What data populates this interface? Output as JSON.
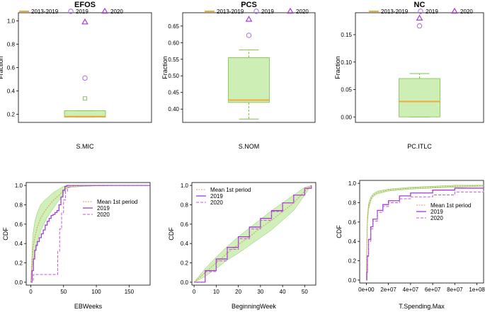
{
  "colors": {
    "orange": "#f2a93b",
    "green": "#7cc24a",
    "green_fill": "#cdeeb4",
    "purple": "#a23bd6",
    "red_dashed": "#e8735a",
    "violet": "#a86de0"
  },
  "chart_data": [
    {
      "type": "boxplot",
      "title": "EFOS",
      "xlabel": "S.MIC",
      "ylabel": "Fraction",
      "ylim": [
        0.13,
        1.07
      ],
      "yticks": [
        "0.2",
        "0.4",
        "0.6",
        "0.8",
        "1.0"
      ],
      "ytick_values": [
        0.2,
        0.4,
        0.6,
        0.8,
        1.0
      ],
      "legend": [
        "2013-2019",
        "2019",
        "2020"
      ],
      "box": {
        "whisker_low": 0.175,
        "q1": 0.175,
        "median": 0.18,
        "q3": 0.23,
        "whisker_high": 0.23,
        "outliers": [
          0.335
        ]
      },
      "points": {
        "2019": 0.51,
        "2020": 0.99
      }
    },
    {
      "type": "boxplot",
      "title": "PCS",
      "xlabel": "S.NOM",
      "ylabel": "Fraction",
      "ylim": [
        0.36,
        0.69
      ],
      "yticks": [
        "0.40",
        "0.45",
        "0.50",
        "0.55",
        "0.60",
        "0.65"
      ],
      "ytick_values": [
        0.4,
        0.45,
        0.5,
        0.55,
        0.6,
        0.65
      ],
      "legend": [
        "2013-2019",
        "2019",
        "2020"
      ],
      "box": {
        "whisker_low": 0.37,
        "q1": 0.42,
        "median": 0.427,
        "q3": 0.555,
        "whisker_high": 0.578,
        "outliers": []
      },
      "points": {
        "2019": 0.622,
        "2020": 0.67
      }
    },
    {
      "type": "boxplot",
      "title": "NC",
      "xlabel": "PC.ITLC",
      "ylabel": "Fraction",
      "ylim": [
        -0.01,
        0.19
      ],
      "yticks": [
        "0.00",
        "0.05",
        "0.10",
        "0.15"
      ],
      "ytick_values": [
        0.0,
        0.05,
        0.1,
        0.15
      ],
      "legend": [
        "2013-2019",
        "2019",
        "2020"
      ],
      "box": {
        "whisker_low": 0.0,
        "q1": 0.0,
        "median": 0.028,
        "q3": 0.07,
        "whisker_high": 0.079,
        "outliers": []
      },
      "points": {
        "2019": 0.166,
        "2020": 0.18
      }
    },
    {
      "type": "line",
      "title": "",
      "xlabel": "EBWeeks",
      "ylabel": "CDF",
      "xlim": [
        -7,
        182
      ],
      "ylim": [
        -0.03,
        1.03
      ],
      "xticks": [
        "0",
        "50",
        "100",
        "150"
      ],
      "xtick_values": [
        0,
        50,
        100,
        150
      ],
      "yticks": [
        "0.0",
        "0.2",
        "0.4",
        "0.6",
        "0.8",
        "1.0"
      ],
      "ytick_values": [
        0,
        0.2,
        0.4,
        0.6,
        0.8,
        1.0
      ],
      "legend": [
        "Mean 1st period",
        "2019",
        "2020"
      ],
      "band": {
        "x": [
          0,
          3,
          6,
          10,
          15,
          20,
          25,
          30,
          35,
          40,
          45,
          50,
          55,
          60,
          80,
          100,
          130,
          182
        ],
        "lower": [
          0.0,
          0.2,
          0.3,
          0.42,
          0.53,
          0.6,
          0.67,
          0.72,
          0.77,
          0.82,
          0.86,
          0.92,
          0.97,
          0.98,
          0.99,
          0.995,
          1.0,
          1.0
        ],
        "upper": [
          0.0,
          0.48,
          0.62,
          0.72,
          0.8,
          0.84,
          0.87,
          0.9,
          0.93,
          0.95,
          0.97,
          0.99,
          1.0,
          1.0,
          1.0,
          1.0,
          1.0,
          1.0
        ]
      },
      "series": [
        {
          "name": "Mean 1st period",
          "x": [
            0,
            3,
            6,
            10,
            15,
            20,
            25,
            30,
            35,
            40,
            45,
            50,
            55,
            60,
            80,
            100,
            130,
            182
          ],
          "y": [
            0.0,
            0.34,
            0.46,
            0.57,
            0.66,
            0.72,
            0.77,
            0.81,
            0.85,
            0.88,
            0.91,
            0.95,
            0.98,
            0.99,
            0.995,
            0.998,
            1.0,
            1.0
          ]
        },
        {
          "name": "2019",
          "x": [
            0,
            2,
            4,
            6,
            8,
            10,
            13,
            16,
            19,
            22,
            25,
            28,
            31,
            34,
            37,
            40,
            43,
            46,
            49,
            52,
            55,
            182
          ],
          "y": [
            0.0,
            0.12,
            0.24,
            0.33,
            0.38,
            0.42,
            0.46,
            0.5,
            0.54,
            0.59,
            0.63,
            0.66,
            0.69,
            0.7,
            0.72,
            0.74,
            0.8,
            0.88,
            0.95,
            0.99,
            1.0,
            1.0
          ]
        },
        {
          "name": "2020",
          "x": [
            0,
            2,
            4,
            40,
            41,
            44,
            47,
            50,
            53,
            56,
            60,
            182
          ],
          "y": [
            0.0,
            0.02,
            0.08,
            0.08,
            0.32,
            0.55,
            0.72,
            0.85,
            0.94,
            0.98,
            1.0,
            1.0
          ]
        }
      ]
    },
    {
      "type": "line",
      "title": "",
      "xlabel": "BeginningWeek",
      "ylabel": "CDF",
      "xlim": [
        -1,
        55
      ],
      "ylim": [
        -0.03,
        1.03
      ],
      "xticks": [
        "0",
        "10",
        "20",
        "30",
        "40",
        "50"
      ],
      "xtick_values": [
        0,
        10,
        20,
        30,
        40,
        50
      ],
      "yticks": [
        "0.0",
        "0.2",
        "0.4",
        "0.6",
        "0.8",
        "1.0"
      ],
      "ytick_values": [
        0,
        0.2,
        0.4,
        0.6,
        0.8,
        1.0
      ],
      "legend": [
        "Mean 1st period",
        "2019",
        "2020"
      ],
      "band": {
        "x": [
          0,
          5,
          10,
          15,
          20,
          25,
          30,
          35,
          40,
          45,
          50,
          53
        ],
        "lower": [
          0.0,
          0.06,
          0.14,
          0.23,
          0.3,
          0.38,
          0.46,
          0.54,
          0.64,
          0.74,
          0.9,
          1.0
        ],
        "upper": [
          0.0,
          0.14,
          0.26,
          0.37,
          0.47,
          0.56,
          0.65,
          0.74,
          0.82,
          0.9,
          0.98,
          1.0
        ]
      },
      "series": [
        {
          "name": "Mean 1st period",
          "x": [
            0,
            5,
            10,
            15,
            20,
            25,
            30,
            35,
            40,
            45,
            50,
            53
          ],
          "y": [
            0.0,
            0.1,
            0.2,
            0.3,
            0.39,
            0.47,
            0.56,
            0.64,
            0.73,
            0.82,
            0.94,
            1.0
          ]
        },
        {
          "name": "2019",
          "x": [
            0,
            5,
            10,
            15,
            20,
            25,
            30,
            35,
            40,
            45,
            50,
            53
          ],
          "y": [
            0.0,
            0.12,
            0.24,
            0.36,
            0.47,
            0.57,
            0.66,
            0.74,
            0.82,
            0.9,
            0.97,
            1.0
          ]
        },
        {
          "name": "2020",
          "x": [
            0,
            5,
            10,
            15,
            20,
            25,
            30,
            35,
            40,
            45,
            50,
            53
          ],
          "y": [
            0.0,
            0.11,
            0.22,
            0.34,
            0.45,
            0.55,
            0.64,
            0.73,
            0.82,
            0.9,
            0.97,
            1.0
          ]
        }
      ]
    },
    {
      "type": "line",
      "title": "",
      "xlabel": "T.Spending.Max",
      "ylabel": "CDF",
      "xlim": [
        -6000000,
        106000000
      ],
      "ylim": [
        -0.03,
        1.03
      ],
      "xticks": [
        "0e+00",
        "2e+07",
        "4e+07",
        "6e+07",
        "8e+07",
        "1e+08"
      ],
      "xtick_values": [
        0,
        20000000,
        40000000,
        60000000,
        80000000,
        100000000
      ],
      "yticks": [
        "0.0",
        "0.2",
        "0.4",
        "0.6",
        "0.8",
        "1.0"
      ],
      "ytick_values": [
        0,
        0.2,
        0.4,
        0.6,
        0.8,
        1.0
      ],
      "legend": [
        "Mean 1st period",
        "2019",
        "2020"
      ],
      "band": {
        "x": [
          0,
          500000,
          1000000,
          2000000,
          4000000,
          6000000,
          10000000,
          20000000,
          40000000,
          60000000,
          80000000,
          106000000
        ],
        "lower": [
          0.0,
          0.35,
          0.58,
          0.73,
          0.82,
          0.86,
          0.89,
          0.92,
          0.94,
          0.95,
          0.96,
          0.97
        ],
        "upper": [
          0.0,
          0.45,
          0.66,
          0.79,
          0.86,
          0.89,
          0.92,
          0.94,
          0.96,
          0.97,
          0.98,
          0.98
        ]
      },
      "series": [
        {
          "name": "Mean 1st period",
          "x": [
            0,
            500000,
            1000000,
            2000000,
            4000000,
            6000000,
            10000000,
            20000000,
            40000000,
            60000000,
            80000000,
            106000000
          ],
          "y": [
            0.0,
            0.4,
            0.62,
            0.76,
            0.84,
            0.875,
            0.905,
            0.93,
            0.95,
            0.96,
            0.97,
            0.975
          ]
        },
        {
          "name": "2019",
          "x": [
            0,
            500000,
            1000000,
            2000000,
            4000000,
            6000000,
            10000000,
            15000000,
            20000000,
            30000000,
            40000000,
            60000000,
            80000000,
            106000000
          ],
          "y": [
            0.0,
            0.08,
            0.25,
            0.42,
            0.55,
            0.63,
            0.72,
            0.78,
            0.82,
            0.87,
            0.9,
            0.93,
            0.95,
            0.96
          ]
        },
        {
          "name": "2020",
          "x": [
            0,
            500000,
            1000000,
            2000000,
            4000000,
            6000000,
            10000000,
            15000000,
            20000000,
            30000000,
            40000000,
            60000000,
            80000000,
            106000000
          ],
          "y": [
            0.0,
            0.08,
            0.24,
            0.4,
            0.53,
            0.61,
            0.7,
            0.76,
            0.8,
            0.84,
            0.86,
            0.88,
            0.91,
            0.93
          ]
        }
      ]
    }
  ]
}
